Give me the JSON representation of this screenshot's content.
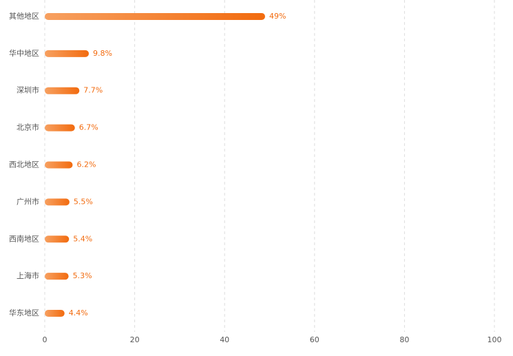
{
  "chart_data": {
    "type": "bar",
    "orientation": "horizontal",
    "categories": [
      "其他地区",
      "华中地区",
      "深圳市",
      "北京市",
      "西北地区",
      "广州市",
      "西南地区",
      "上海市",
      "华东地区"
    ],
    "values": [
      49,
      9.8,
      7.7,
      6.7,
      6.2,
      5.5,
      5.4,
      5.3,
      4.4
    ],
    "value_labels": [
      "49%",
      "9.8%",
      "7.7%",
      "6.7%",
      "6.2%",
      "5.5%",
      "5.4%",
      "5.3%",
      "4.4%"
    ],
    "color": "#f26b0f",
    "xlim": [
      0,
      100
    ],
    "xticks": [
      0,
      20,
      40,
      60,
      80,
      100
    ],
    "grid": true
  }
}
